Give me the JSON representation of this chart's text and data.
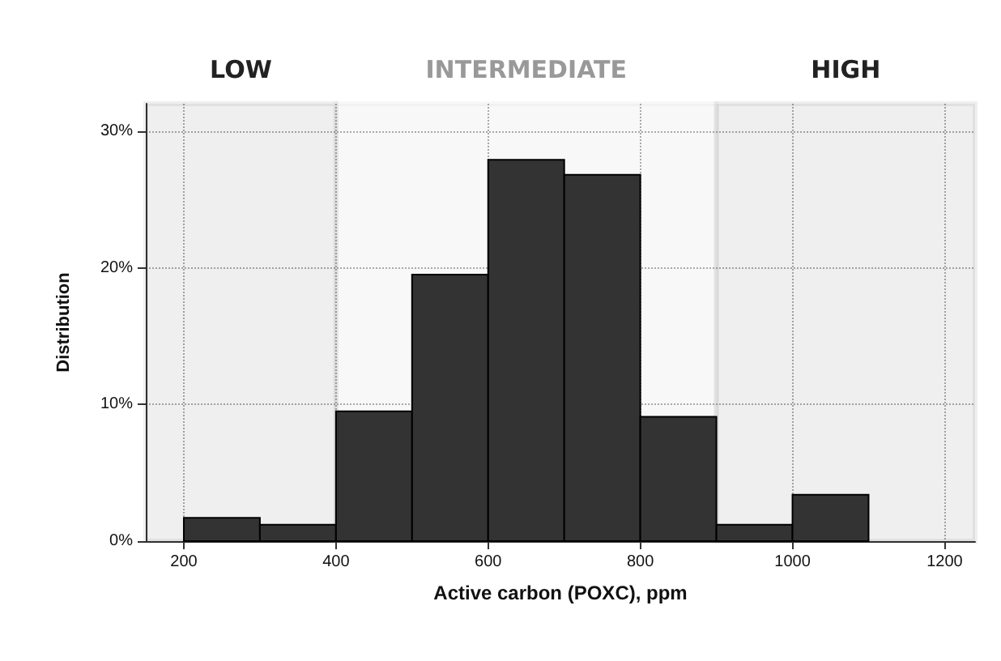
{
  "chart_data": {
    "type": "histogram",
    "xlabel": "Active carbon (POXC), ppm",
    "ylabel": "Distribution",
    "bins": [
      200,
      300,
      400,
      500,
      600,
      700,
      800,
      900,
      1000,
      1100
    ],
    "values": [
      1.7,
      1.2,
      9.5,
      19.5,
      27.9,
      26.8,
      9.1,
      1.2,
      3.4
    ],
    "color": "#333333",
    "xlim": [
      150,
      1240
    ],
    "xticks": [
      200,
      400,
      600,
      800,
      1000,
      1200
    ],
    "ylim": [
      0,
      32
    ],
    "yticks": [
      {
        "value": 0,
        "label": "0%"
      },
      {
        "value": 10,
        "label": "10%"
      },
      {
        "value": 20,
        "label": "20%"
      },
      {
        "value": 30,
        "label": "30%"
      }
    ],
    "bands": [
      {
        "axis": "x",
        "from": 150,
        "to": 400,
        "label": "LOW",
        "color": "#222222"
      },
      {
        "axis": "x",
        "from": 400,
        "to": 900,
        "label": "INTERMEDIATE",
        "color": "#999999"
      },
      {
        "axis": "x",
        "from": 900,
        "to": 1240,
        "label": "HIGH",
        "color": "#222222"
      }
    ],
    "grid": true,
    "line_style": "dotted"
  }
}
